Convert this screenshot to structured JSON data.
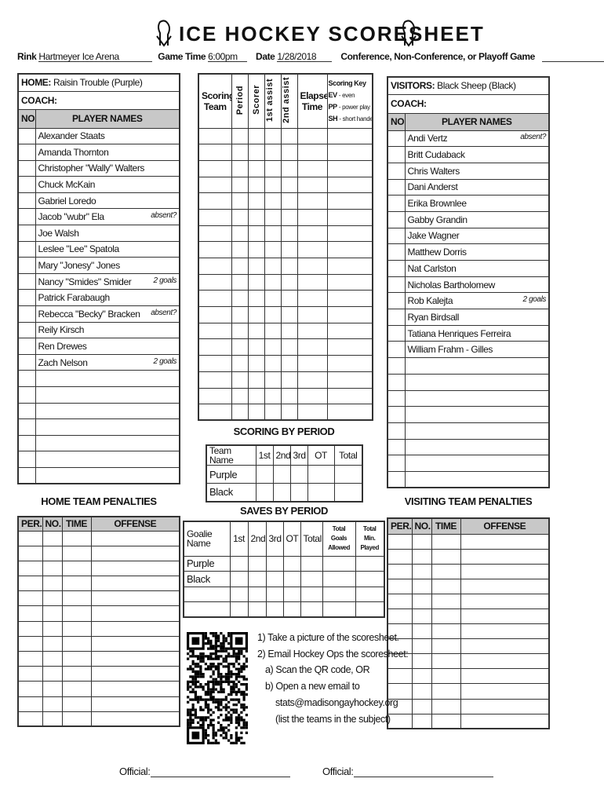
{
  "title": "ICE HOCKEY SCORESHEET",
  "logo_icon": "hockey-player-logo-icon",
  "info": {
    "rink_label": "Rink",
    "rink": "Hartmeyer Ice Arena",
    "time_label": "Game Time",
    "time": "6:00pm",
    "date_label": "Date",
    "date": "1/28/2018",
    "type_label": "Conference, Non-Conference, or Playoff Game",
    "type": ""
  },
  "home": {
    "label": "HOME:",
    "team": "Raisin Trouble (Purple)",
    "coach_label": "COACH:",
    "no_header": "NO.",
    "names_header": "PLAYER NAMES",
    "players": [
      {
        "name": "Alexander Staats",
        "note": ""
      },
      {
        "name": "Amanda Thornton",
        "note": ""
      },
      {
        "name": "Christopher \"Wally\" Walters",
        "note": ""
      },
      {
        "name": "Chuck McKain",
        "note": ""
      },
      {
        "name": "Gabriel Loredo",
        "note": ""
      },
      {
        "name": "Jacob \"wubr\" Ela",
        "note": "absent?"
      },
      {
        "name": "Joe Walsh",
        "note": ""
      },
      {
        "name": "Leslee \"Lee\" Spatola",
        "note": ""
      },
      {
        "name": "Mary \"Jonesy\" Jones",
        "note": ""
      },
      {
        "name": "Nancy \"Smides\" Smider",
        "note": "2 goals"
      },
      {
        "name": "Patrick Farabaugh",
        "note": ""
      },
      {
        "name": "Rebecca \"Becky\" Bracken",
        "note": "absent?"
      },
      {
        "name": "Reily Kirsch",
        "note": ""
      },
      {
        "name": "Ren Drewes",
        "note": ""
      },
      {
        "name": "Zach Nelson",
        "note": "2 goals"
      }
    ]
  },
  "visitors": {
    "label": "VISITORS:",
    "team": "Black Sheep (Black)",
    "coach_label": "COACH:",
    "no_header": "NO.",
    "names_header": "PLAYER NAMES",
    "players": [
      {
        "name": "Andi Vertz",
        "note": "absent?"
      },
      {
        "name": "Britt Cudaback",
        "note": ""
      },
      {
        "name": "Chris Walters",
        "note": ""
      },
      {
        "name": "Dani Anderst",
        "note": ""
      },
      {
        "name": "Erika Brownlee",
        "note": ""
      },
      {
        "name": "Gabby Grandin",
        "note": ""
      },
      {
        "name": "Jake Wagner",
        "note": ""
      },
      {
        "name": "Matthew Dorris",
        "note": ""
      },
      {
        "name": "Nat Carlston",
        "note": ""
      },
      {
        "name": "Nicholas Bartholomew",
        "note": ""
      },
      {
        "name": "Rob Kalejta",
        "note": "2 goals"
      },
      {
        "name": "Ryan Birdsall",
        "note": ""
      },
      {
        "name": "Tatiana Henriques Ferreira",
        "note": ""
      },
      {
        "name": "William Frahm - Gilles",
        "note": ""
      }
    ]
  },
  "scoring": {
    "scoring_team": "Scoring Team",
    "period": "Period",
    "scorer": "Scorer",
    "assist1": "1st assist",
    "assist2": "2nd assist",
    "elapsed": "Elapsed Time",
    "key_title": "Scoring Key",
    "key": [
      {
        "code": "EV",
        "desc": "- even"
      },
      {
        "code": "PP",
        "desc": "- power play"
      },
      {
        "code": "SH",
        "desc": "- short handed"
      }
    ]
  },
  "by_period": {
    "title": "SCORING BY PERIOD",
    "headers": [
      "Team Name",
      "1st",
      "2nd",
      "3rd",
      "OT",
      "Total"
    ],
    "rows": [
      "Purple",
      "Black"
    ]
  },
  "saves": {
    "title": "SAVES BY PERIOD",
    "headers": [
      "Goalie Name",
      "1st",
      "2nd",
      "3rd",
      "OT",
      "Total",
      "Total Goals Allowed",
      "Total Min. Played"
    ],
    "rows": [
      "Purple",
      "Black",
      "",
      ""
    ]
  },
  "home_penalties": {
    "title": "HOME TEAM PENALTIES",
    "headers": [
      "PER.",
      "NO.",
      "TIME",
      "OFFENSE"
    ]
  },
  "visiting_penalties": {
    "title": "VISITING TEAM PENALTIES",
    "headers": [
      "PER.",
      "NO.",
      "TIME",
      "OFFENSE"
    ]
  },
  "instructions": [
    "1) Take a picture of the scoresheet.",
    "2) Email Hockey Ops the scoresheet:",
    "a) Scan the QR code, OR",
    "b) Open a new email to",
    "stats@madisongayhockey.org",
    "(list the teams in the subject)"
  ],
  "qr_icon": "qr-code-icon",
  "official_label": "Official:"
}
